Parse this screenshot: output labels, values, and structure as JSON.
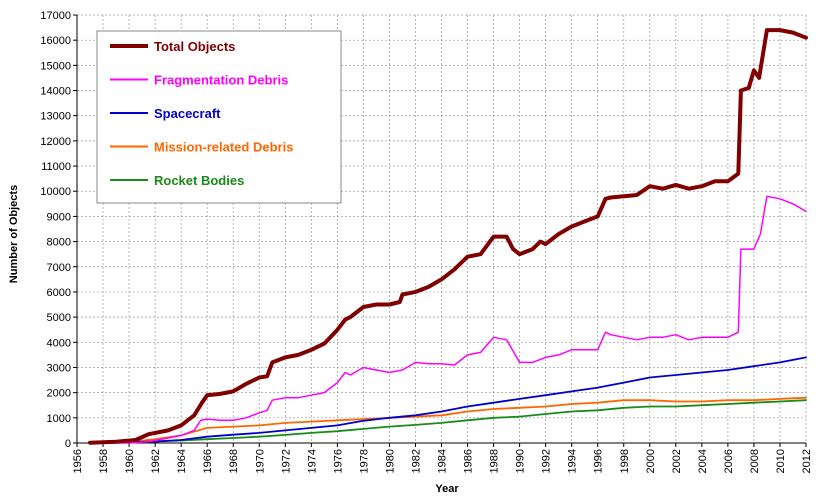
{
  "chart_data": {
    "type": "line",
    "xlabel": "Year",
    "ylabel": "Number of Objects",
    "xlim": [
      1956,
      2012
    ],
    "ylim": [
      0,
      17000
    ],
    "x_ticks": [
      1956,
      1958,
      1960,
      1962,
      1964,
      1966,
      1968,
      1970,
      1972,
      1974,
      1976,
      1978,
      1980,
      1982,
      1984,
      1986,
      1988,
      1990,
      1992,
      1994,
      1996,
      1998,
      2000,
      2002,
      2004,
      2006,
      2008,
      2010,
      2012
    ],
    "y_ticks": [
      0,
      1000,
      2000,
      3000,
      4000,
      5000,
      6000,
      7000,
      8000,
      9000,
      10000,
      11000,
      12000,
      13000,
      14000,
      15000,
      16000,
      17000
    ],
    "grid": true,
    "legend_position": "top-left",
    "series": [
      {
        "name": "Total Objects",
        "color": "#800000",
        "width": 4,
        "x": [
          1957,
          1959,
          1960.5,
          1961.5,
          1962,
          1963,
          1964,
          1964.5,
          1965,
          1965.6,
          1966,
          1967,
          1968,
          1969,
          1970,
          1970.6,
          1971,
          1972,
          1973,
          1974,
          1975,
          1976,
          1976.6,
          1977,
          1978,
          1979,
          1980,
          1980.8,
          1981,
          1982,
          1983,
          1984,
          1985,
          1986,
          1987,
          1988,
          1989,
          1989.5,
          1990,
          1991,
          1991.6,
          1992,
          1993,
          1994,
          1995,
          1996,
          1996.6,
          1997,
          1998,
          1999,
          2000,
          2001,
          2002,
          2003,
          2004,
          2005,
          2006,
          2006.8,
          2007,
          2007.6,
          2008,
          2008.4,
          2009,
          2009.2,
          2010,
          2011,
          2012
        ],
        "y": [
          10,
          50,
          120,
          350,
          400,
          500,
          700,
          900,
          1100,
          1600,
          1900,
          1950,
          2050,
          2350,
          2600,
          2650,
          3200,
          3400,
          3500,
          3700,
          3950,
          4500,
          4900,
          5000,
          5400,
          5500,
          5500,
          5600,
          5900,
          6000,
          6200,
          6500,
          6900,
          7400,
          7500,
          8200,
          8200,
          7700,
          7500,
          7700,
          8000,
          7900,
          8300,
          8600,
          8800,
          9000,
          9700,
          9750,
          9800,
          9850,
          10200,
          10100,
          10250,
          10100,
          10200,
          10400,
          10400,
          10700,
          14000,
          14100,
          14800,
          14500,
          16400,
          16400,
          16400,
          16300,
          16100
        ]
      },
      {
        "name": "Fragmentation Debris",
        "color": "#ff00ff",
        "width": 1.5,
        "x": [
          1957,
          1960,
          1961.5,
          1962,
          1963,
          1964,
          1965,
          1965.5,
          1966,
          1967,
          1968,
          1969,
          1970,
          1970.6,
          1971,
          1972,
          1973,
          1974,
          1975,
          1976,
          1976.6,
          1977,
          1978,
          1979,
          1980,
          1981,
          1982,
          1983,
          1984,
          1985,
          1986,
          1987,
          1988,
          1989,
          1990,
          1991,
          1992,
          1993,
          1994,
          1995,
          1996,
          1996.6,
          1997,
          1998,
          1999,
          2000,
          2001,
          2002,
          2003,
          2004,
          2005,
          2006,
          2006.8,
          2007,
          2008,
          2008.5,
          2009,
          2010,
          2011,
          2012
        ],
        "y": [
          0,
          0,
          50,
          100,
          200,
          300,
          500,
          900,
          950,
          900,
          900,
          1000,
          1200,
          1300,
          1700,
          1800,
          1800,
          1900,
          2000,
          2400,
          2800,
          2700,
          3000,
          2900,
          2800,
          2900,
          3200,
          3150,
          3150,
          3100,
          3500,
          3600,
          4200,
          4100,
          3200,
          3200,
          3400,
          3500,
          3700,
          3700,
          3700,
          4400,
          4300,
          4200,
          4100,
          4200,
          4200,
          4300,
          4100,
          4200,
          4200,
          4200,
          4400,
          7700,
          7700,
          8300,
          9800,
          9700,
          9500,
          9200
        ]
      },
      {
        "name": "Spacecraft",
        "color": "#0000cc",
        "width": 1.8,
        "x": [
          1957,
          1960,
          1962,
          1964,
          1966,
          1968,
          1970,
          1972,
          1974,
          1976,
          1978,
          1980,
          1982,
          1984,
          1986,
          1988,
          1990,
          1992,
          1994,
          1996,
          1998,
          2000,
          2002,
          2004,
          2006,
          2008,
          2010,
          2012
        ],
        "y": [
          5,
          30,
          60,
          120,
          250,
          330,
          400,
          500,
          600,
          700,
          880,
          1000,
          1100,
          1250,
          1450,
          1600,
          1750,
          1900,
          2050,
          2200,
          2400,
          2600,
          2700,
          2800,
          2900,
          3050,
          3200,
          3400
        ]
      },
      {
        "name": "Mission-related Debris",
        "color": "#ff6600",
        "width": 1.8,
        "x": [
          1957,
          1960,
          1962,
          1964,
          1966,
          1968,
          1970,
          1972,
          1974,
          1976,
          1978,
          1980,
          1982,
          1984,
          1986,
          1988,
          1990,
          1992,
          1994,
          1996,
          1998,
          2000,
          2002,
          2004,
          2006,
          2008,
          2010,
          2012
        ],
        "y": [
          0,
          30,
          150,
          300,
          600,
          650,
          700,
          800,
          850,
          900,
          950,
          1000,
          1050,
          1100,
          1250,
          1350,
          1400,
          1450,
          1550,
          1600,
          1700,
          1700,
          1650,
          1650,
          1700,
          1700,
          1750,
          1800
        ]
      },
      {
        "name": "Rocket Bodies",
        "color": "#1a8a1a",
        "width": 1.8,
        "x": [
          1957,
          1960,
          1962,
          1964,
          1966,
          1968,
          1970,
          1972,
          1974,
          1976,
          1978,
          1980,
          1982,
          1984,
          1986,
          1988,
          1990,
          1992,
          1994,
          1996,
          1998,
          2000,
          2002,
          2004,
          2006,
          2008,
          2010,
          2012
        ],
        "y": [
          5,
          30,
          60,
          100,
          150,
          200,
          250,
          320,
          400,
          470,
          560,
          650,
          720,
          800,
          900,
          1000,
          1050,
          1150,
          1250,
          1300,
          1400,
          1450,
          1450,
          1500,
          1550,
          1600,
          1650,
          1700
        ]
      }
    ]
  }
}
